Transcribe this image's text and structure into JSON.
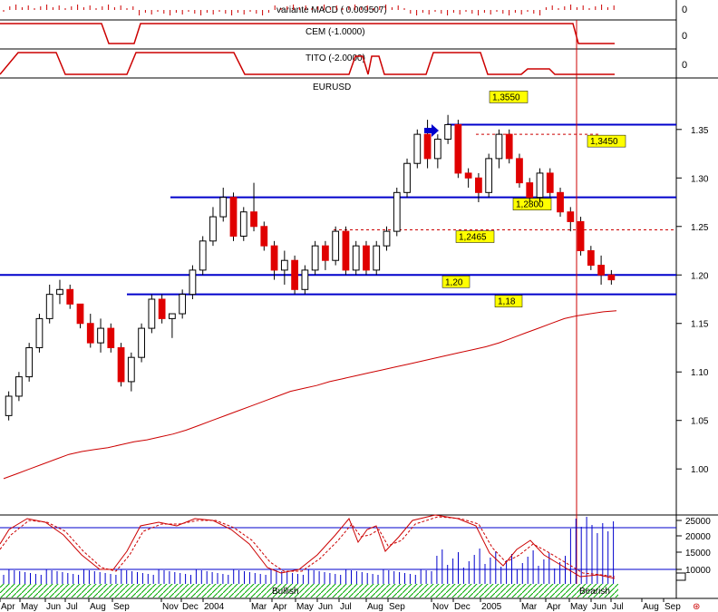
{
  "panels": {
    "macd": {
      "label": "variante MACD ( 0.009507)",
      "axis_value": "0"
    },
    "cem": {
      "label": "CEM (-1.0000)",
      "axis_value": "0"
    },
    "tito": {
      "label": "TITO (-2.0000)",
      "axis_value": "0"
    }
  },
  "chart_data": {
    "type": "candlestick",
    "title": "EURUSD",
    "yaxis": {
      "ticks": [
        "1.35",
        "1.30",
        "1.25",
        "1.20",
        "1.15",
        "1.10",
        "1.05",
        "1.00"
      ],
      "ylim": [
        0.96,
        1.39
      ]
    },
    "xaxis": {
      "ticks": [
        "Apr",
        "May",
        "Jun",
        "Jul",
        "Aug",
        "Sep",
        "Nov",
        "Dec",
        "2004",
        "Mar",
        "Apr",
        "May",
        "Jun",
        "Jul",
        "Aug",
        "Sep",
        "Nov",
        "Dec",
        "2005",
        "Mar",
        "Apr",
        "May",
        "Jun",
        "Jul",
        "Aug",
        "Sep"
      ]
    },
    "ohlc": [
      [
        1.055,
        1.08,
        1.05,
        1.075
      ],
      [
        1.075,
        1.1,
        1.07,
        1.095
      ],
      [
        1.095,
        1.13,
        1.09,
        1.125
      ],
      [
        1.125,
        1.16,
        1.12,
        1.155
      ],
      [
        1.155,
        1.19,
        1.15,
        1.18
      ],
      [
        1.18,
        1.195,
        1.17,
        1.185
      ],
      [
        1.185,
        1.19,
        1.165,
        1.17
      ],
      [
        1.17,
        1.17,
        1.145,
        1.15
      ],
      [
        1.15,
        1.16,
        1.125,
        1.13
      ],
      [
        1.13,
        1.155,
        1.12,
        1.145
      ],
      [
        1.145,
        1.15,
        1.12,
        1.125
      ],
      [
        1.125,
        1.13,
        1.085,
        1.09
      ],
      [
        1.09,
        1.12,
        1.08,
        1.115
      ],
      [
        1.115,
        1.15,
        1.11,
        1.145
      ],
      [
        1.145,
        1.18,
        1.14,
        1.175
      ],
      [
        1.175,
        1.18,
        1.15,
        1.155
      ],
      [
        1.155,
        1.16,
        1.135,
        1.16
      ],
      [
        1.16,
        1.185,
        1.155,
        1.18
      ],
      [
        1.18,
        1.21,
        1.175,
        1.205
      ],
      [
        1.205,
        1.24,
        1.2,
        1.235
      ],
      [
        1.235,
        1.27,
        1.23,
        1.26
      ],
      [
        1.26,
        1.29,
        1.255,
        1.28
      ],
      [
        1.28,
        1.285,
        1.235,
        1.24
      ],
      [
        1.24,
        1.27,
        1.235,
        1.265
      ],
      [
        1.265,
        1.295,
        1.245,
        1.25
      ],
      [
        1.25,
        1.255,
        1.225,
        1.23
      ],
      [
        1.23,
        1.235,
        1.195,
        1.205
      ],
      [
        1.205,
        1.225,
        1.19,
        1.215
      ],
      [
        1.215,
        1.22,
        1.18,
        1.185
      ],
      [
        1.185,
        1.21,
        1.18,
        1.205
      ],
      [
        1.205,
        1.235,
        1.2,
        1.23
      ],
      [
        1.23,
        1.235,
        1.205,
        1.215
      ],
      [
        1.215,
        1.25,
        1.21,
        1.245
      ],
      [
        1.245,
        1.25,
        1.2,
        1.205
      ],
      [
        1.205,
        1.235,
        1.2,
        1.23
      ],
      [
        1.23,
        1.235,
        1.2,
        1.205
      ],
      [
        1.205,
        1.235,
        1.2,
        1.23
      ],
      [
        1.23,
        1.25,
        1.225,
        1.245
      ],
      [
        1.245,
        1.29,
        1.24,
        1.285
      ],
      [
        1.285,
        1.32,
        1.28,
        1.315
      ],
      [
        1.315,
        1.35,
        1.31,
        1.345
      ],
      [
        1.345,
        1.36,
        1.31,
        1.32
      ],
      [
        1.32,
        1.345,
        1.31,
        1.34
      ],
      [
        1.34,
        1.365,
        1.335,
        1.355
      ],
      [
        1.355,
        1.36,
        1.3,
        1.305
      ],
      [
        1.305,
        1.31,
        1.29,
        1.3
      ],
      [
        1.3,
        1.305,
        1.275,
        1.285
      ],
      [
        1.285,
        1.325,
        1.28,
        1.32
      ],
      [
        1.32,
        1.35,
        1.31,
        1.345
      ],
      [
        1.345,
        1.35,
        1.315,
        1.32
      ],
      [
        1.32,
        1.325,
        1.29,
        1.295
      ],
      [
        1.295,
        1.3,
        1.275,
        1.28
      ],
      [
        1.28,
        1.31,
        1.275,
        1.305
      ],
      [
        1.305,
        1.31,
        1.28,
        1.285
      ],
      [
        1.285,
        1.29,
        1.26,
        1.265
      ],
      [
        1.265,
        1.27,
        1.245,
        1.255
      ],
      [
        1.255,
        1.26,
        1.22,
        1.225
      ],
      [
        1.225,
        1.23,
        1.205,
        1.21
      ],
      [
        1.21,
        1.22,
        1.19,
        1.2
      ],
      [
        1.2,
        1.205,
        1.19,
        1.195
      ]
    ],
    "sma": [
      0.99,
      0.995,
      1.0,
      1.005,
      1.01,
      1.015,
      1.018,
      1.02,
      1.022,
      1.025,
      1.028,
      1.03,
      1.033,
      1.036,
      1.04,
      1.045,
      1.05,
      1.055,
      1.06,
      1.065,
      1.07,
      1.075,
      1.08,
      1.083,
      1.086,
      1.09,
      1.093,
      1.096,
      1.099,
      1.102,
      1.105,
      1.108,
      1.111,
      1.114,
      1.117,
      1.12,
      1.123,
      1.126,
      1.13,
      1.135,
      1.14,
      1.145,
      1.15,
      1.155,
      1.158,
      1.16,
      1.162,
      1.163
    ],
    "levels": [
      {
        "value": 1.355,
        "label": "1,3550",
        "style": "solid"
      },
      {
        "value": 1.345,
        "label": "1,3450",
        "style": "dashed"
      },
      {
        "value": 1.28,
        "label": "1,2800",
        "style": "solid"
      },
      {
        "value": 1.2465,
        "label": "1,2465",
        "style": "dashed"
      },
      {
        "value": 1.2,
        "label": "1,20",
        "style": "solid"
      },
      {
        "value": 1.18,
        "label": "1,18",
        "style": "solid"
      }
    ],
    "oscillator": {
      "ticks": [
        "25000",
        "20000",
        "15000",
        "10000"
      ],
      "regions": {
        "left": "Bullish",
        "right": "Bearish"
      }
    }
  },
  "colors": {
    "up": "#ffffff",
    "down": "#e00000",
    "level": "#0000cc",
    "sma": "#cc0000",
    "volume": "#0000cc",
    "divider": "#cc0000",
    "label_bg": "#ffff00",
    "hatch": "#00aa00"
  }
}
